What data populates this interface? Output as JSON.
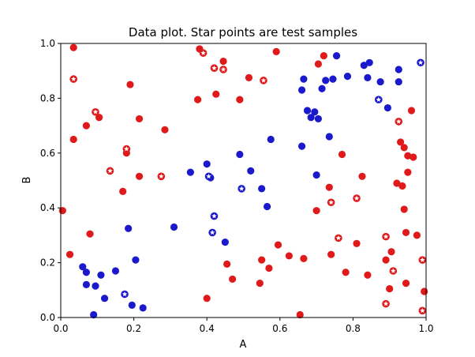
{
  "chart_data": {
    "type": "scatter",
    "title": "Data plot. Star points are test samples",
    "xlabel": "A",
    "ylabel": "B",
    "xlim": [
      0.0,
      1.0
    ],
    "ylim": [
      0.0,
      1.0
    ],
    "xticks": [
      "0.0",
      "0.2",
      "0.4",
      "0.6",
      "0.8",
      "1.0"
    ],
    "yticks": [
      "0.0",
      "0.2",
      "0.4",
      "0.6",
      "0.8",
      "1.0"
    ],
    "grid": false,
    "colors": {
      "red": "#e0191b",
      "blue": "#1a1acc"
    },
    "series": [
      {
        "color": "red",
        "marker": "circle",
        "points": [
          [
            0.035,
            0.985
          ],
          [
            0.005,
            0.39
          ],
          [
            0.035,
            0.65
          ],
          [
            0.025,
            0.23
          ],
          [
            0.07,
            0.7
          ],
          [
            0.08,
            0.305
          ],
          [
            0.105,
            0.73
          ],
          [
            0.17,
            0.46
          ],
          [
            0.18,
            0.6
          ],
          [
            0.19,
            0.85
          ],
          [
            0.215,
            0.725
          ],
          [
            0.215,
            0.515
          ],
          [
            0.285,
            0.685
          ],
          [
            0.375,
            0.795
          ],
          [
            0.38,
            0.98
          ],
          [
            0.4,
            0.07
          ],
          [
            0.425,
            0.815
          ],
          [
            0.445,
            0.935
          ],
          [
            0.455,
            0.195
          ],
          [
            0.47,
            0.14
          ],
          [
            0.49,
            0.795
          ],
          [
            0.515,
            0.875
          ],
          [
            0.545,
            0.125
          ],
          [
            0.55,
            0.21
          ],
          [
            0.57,
            0.18
          ],
          [
            0.59,
            0.97
          ],
          [
            0.595,
            0.265
          ],
          [
            0.625,
            0.225
          ],
          [
            0.655,
            0.01
          ],
          [
            0.665,
            0.215
          ],
          [
            0.7,
            0.39
          ],
          [
            0.705,
            0.925
          ],
          [
            0.72,
            0.955
          ],
          [
            0.735,
            0.475
          ],
          [
            0.74,
            0.23
          ],
          [
            0.77,
            0.595
          ],
          [
            0.78,
            0.165
          ],
          [
            0.81,
            0.27
          ],
          [
            0.825,
            0.515
          ],
          [
            0.84,
            0.155
          ],
          [
            0.89,
            0.21
          ],
          [
            0.9,
            0.105
          ],
          [
            0.905,
            0.24
          ],
          [
            0.92,
            0.49
          ],
          [
            0.93,
            0.64
          ],
          [
            0.935,
            0.48
          ],
          [
            0.94,
            0.62
          ],
          [
            0.94,
            0.395
          ],
          [
            0.945,
            0.31
          ],
          [
            0.945,
            0.125
          ],
          [
            0.95,
            0.59
          ],
          [
            0.95,
            0.53
          ],
          [
            0.96,
            0.755
          ],
          [
            0.965,
            0.585
          ],
          [
            0.975,
            0.3
          ],
          [
            0.99,
            0.21
          ],
          [
            0.995,
            0.095
          ]
        ]
      },
      {
        "color": "red",
        "marker": "star",
        "points": [
          [
            0.035,
            0.87
          ],
          [
            0.095,
            0.75
          ],
          [
            0.135,
            0.535
          ],
          [
            0.18,
            0.615
          ],
          [
            0.275,
            0.515
          ],
          [
            0.39,
            0.965
          ],
          [
            0.42,
            0.91
          ],
          [
            0.445,
            0.905
          ],
          [
            0.555,
            0.865
          ],
          [
            0.74,
            0.42
          ],
          [
            0.76,
            0.29
          ],
          [
            0.81,
            0.435
          ],
          [
            0.89,
            0.295
          ],
          [
            0.89,
            0.05
          ],
          [
            0.91,
            0.17
          ],
          [
            0.925,
            0.715
          ],
          [
            0.99,
            0.21
          ],
          [
            0.99,
            0.025
          ]
        ]
      },
      {
        "color": "blue",
        "marker": "circle",
        "points": [
          [
            0.06,
            0.185
          ],
          [
            0.07,
            0.165
          ],
          [
            0.07,
            0.12
          ],
          [
            0.09,
            0.01
          ],
          [
            0.095,
            0.115
          ],
          [
            0.11,
            0.155
          ],
          [
            0.12,
            0.07
          ],
          [
            0.15,
            0.17
          ],
          [
            0.185,
            0.325
          ],
          [
            0.195,
            0.045
          ],
          [
            0.205,
            0.21
          ],
          [
            0.225,
            0.035
          ],
          [
            0.31,
            0.33
          ],
          [
            0.355,
            0.53
          ],
          [
            0.4,
            0.56
          ],
          [
            0.41,
            0.51
          ],
          [
            0.45,
            0.275
          ],
          [
            0.49,
            0.595
          ],
          [
            0.52,
            0.535
          ],
          [
            0.55,
            0.47
          ],
          [
            0.565,
            0.405
          ],
          [
            0.575,
            0.65
          ],
          [
            0.66,
            0.625
          ],
          [
            0.66,
            0.83
          ],
          [
            0.665,
            0.87
          ],
          [
            0.675,
            0.755
          ],
          [
            0.685,
            0.73
          ],
          [
            0.695,
            0.75
          ],
          [
            0.7,
            0.52
          ],
          [
            0.705,
            0.725
          ],
          [
            0.715,
            0.835
          ],
          [
            0.725,
            0.865
          ],
          [
            0.735,
            0.66
          ],
          [
            0.745,
            0.87
          ],
          [
            0.755,
            0.955
          ],
          [
            0.785,
            0.88
          ],
          [
            0.83,
            0.92
          ],
          [
            0.84,
            0.875
          ],
          [
            0.845,
            0.93
          ],
          [
            0.875,
            0.86
          ],
          [
            0.895,
            0.765
          ],
          [
            0.925,
            0.905
          ],
          [
            0.925,
            0.86
          ]
        ]
      },
      {
        "color": "blue",
        "marker": "star",
        "points": [
          [
            0.175,
            0.085
          ],
          [
            0.405,
            0.515
          ],
          [
            0.415,
            0.31
          ],
          [
            0.42,
            0.37
          ],
          [
            0.495,
            0.47
          ],
          [
            0.87,
            0.795
          ],
          [
            0.985,
            0.93
          ]
        ]
      }
    ]
  }
}
